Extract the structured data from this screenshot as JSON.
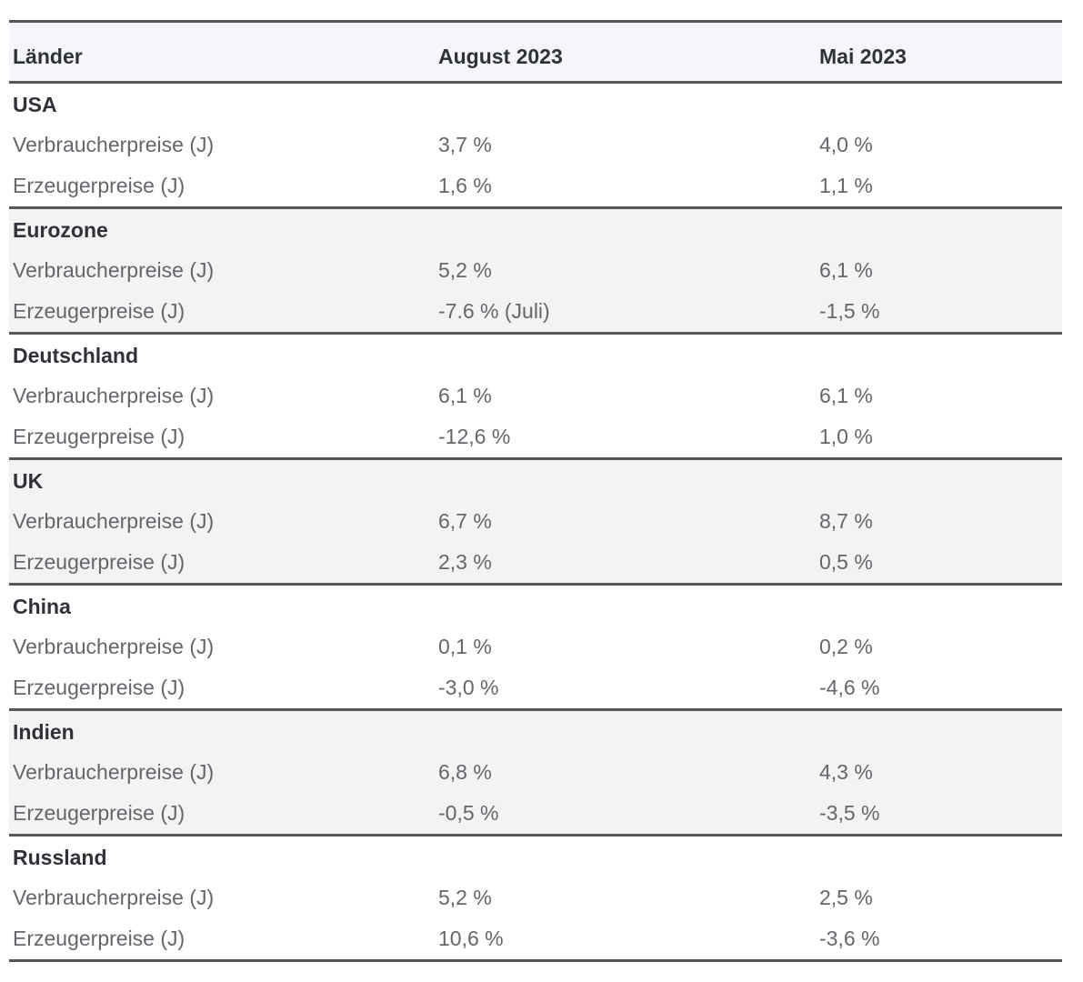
{
  "chart_data": {
    "type": "table",
    "columns": [
      "Länder",
      "August 2023",
      "Mai 2023"
    ],
    "sections": [
      {
        "country": "USA",
        "shaded": false,
        "rows": [
          {
            "label": "Verbraucherpreise (J)",
            "august_2023": "3,7 %",
            "mai_2023": "4,0 %"
          },
          {
            "label": "Erzeugerpreise (J)",
            "august_2023": "1,6 %",
            "mai_2023": "1,1 %"
          }
        ]
      },
      {
        "country": "Eurozone",
        "shaded": true,
        "rows": [
          {
            "label": "Verbraucherpreise (J)",
            "august_2023": "5,2 %",
            "mai_2023": "6,1 %"
          },
          {
            "label": "Erzeugerpreise (J)",
            "august_2023": "-7.6 % (Juli)",
            "mai_2023": "-1,5 %"
          }
        ]
      },
      {
        "country": "Deutschland",
        "shaded": false,
        "rows": [
          {
            "label": "Verbraucherpreise (J)",
            "august_2023": "6,1 %",
            "mai_2023": "6,1 %"
          },
          {
            "label": "Erzeugerpreise (J)",
            "august_2023": "-12,6 %",
            "mai_2023": "1,0 %"
          }
        ]
      },
      {
        "country": "UK",
        "shaded": true,
        "rows": [
          {
            "label": "Verbraucherpreise (J)",
            "august_2023": "6,7 %",
            "mai_2023": "8,7 %"
          },
          {
            "label": "Erzeugerpreise (J)",
            "august_2023": "2,3 %",
            "mai_2023": "0,5 %"
          }
        ]
      },
      {
        "country": "China",
        "shaded": false,
        "rows": [
          {
            "label": "Verbraucherpreise (J)",
            "august_2023": "0,1 %",
            "mai_2023": "0,2 %"
          },
          {
            "label": "Erzeugerpreise (J)",
            "august_2023": "-3,0 %",
            "mai_2023": "-4,6 %"
          }
        ]
      },
      {
        "country": "Indien",
        "shaded": true,
        "rows": [
          {
            "label": "Verbraucherpreise (J)",
            "august_2023": "6,8 %",
            "mai_2023": "4,3 %"
          },
          {
            "label": "Erzeugerpreise (J)",
            "august_2023": "-0,5 %",
            "mai_2023": "-3,5 %"
          }
        ]
      },
      {
        "country": "Russland",
        "shaded": false,
        "rows": [
          {
            "label": "Verbraucherpreise (J)",
            "august_2023": "5,2 %",
            "mai_2023": "2,5 %"
          },
          {
            "label": "Erzeugerpreise (J)",
            "august_2023": "10,6 %",
            "mai_2023": "-3,6 %"
          }
        ]
      }
    ]
  },
  "colors": {
    "border": "#55575a",
    "header_bg": "#f5f6fa",
    "header_text": "#2f3238",
    "country_text": "#2f3238",
    "body_text": "#63666b",
    "section_shade": "#f3f3f4"
  }
}
